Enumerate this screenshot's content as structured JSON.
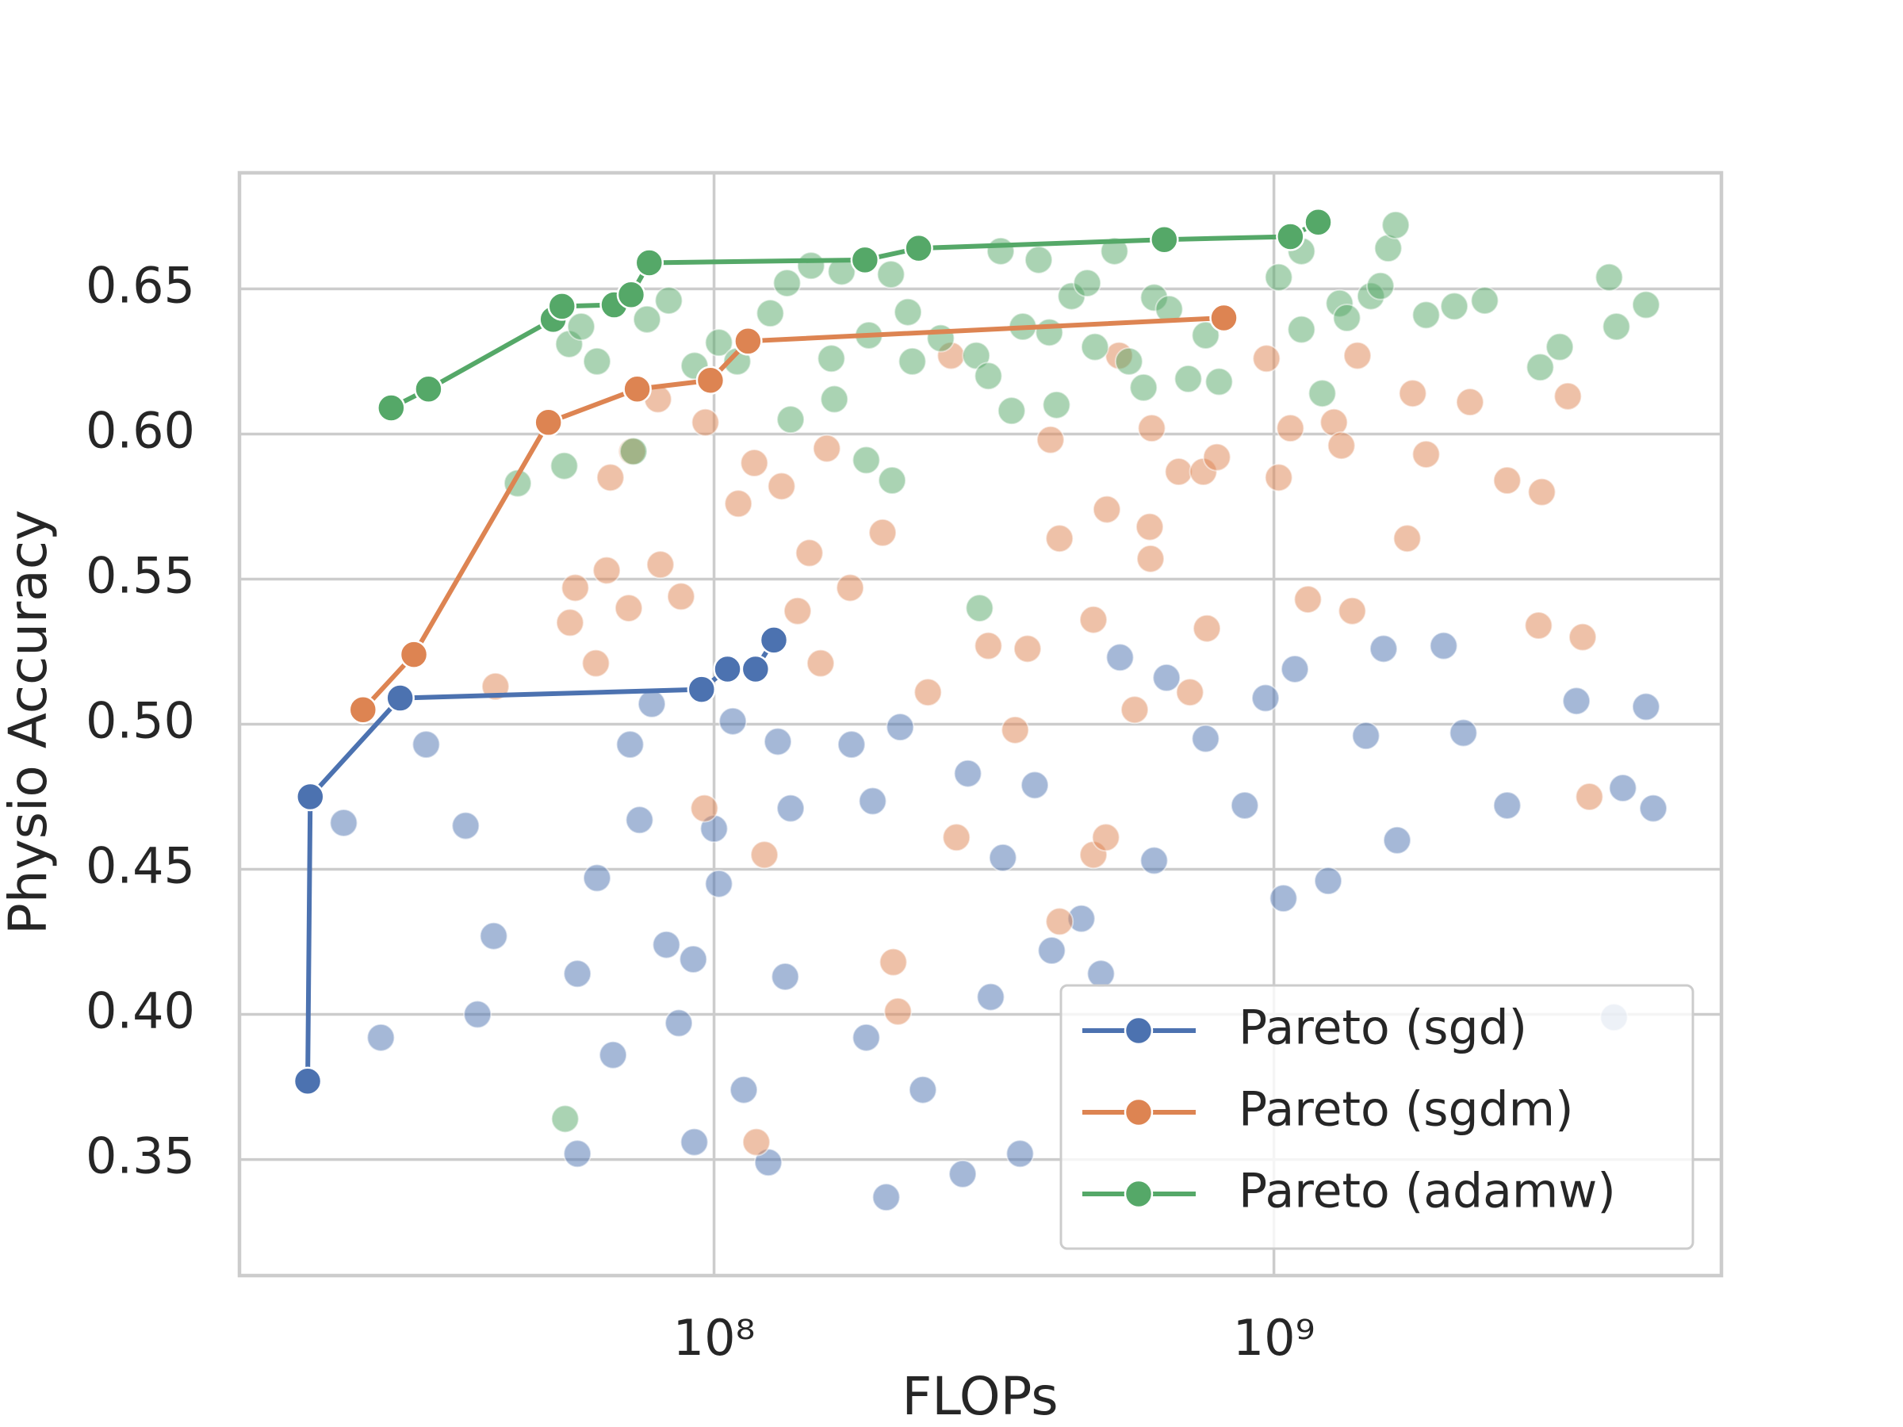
{
  "chart_data": {
    "type": "scatter",
    "xlabel": "FLOPs",
    "ylabel": "Physio Accuracy",
    "xscale": "log",
    "xlim": [
      14200000.0,
      6300000000.0
    ],
    "ylim": [
      0.31,
      0.69
    ],
    "xticks": [
      {
        "value": 100000000.0,
        "label": "10⁸"
      },
      {
        "value": 1000000000.0,
        "label": "10⁹"
      }
    ],
    "yticks": [
      0.35,
      {
        "value": 0.4,
        "label": "0.40"
      },
      0.45,
      {
        "value": 0.5,
        "label": "0.50"
      },
      0.55,
      {
        "value": 0.6,
        "label": "0.60"
      },
      0.65
    ],
    "grid": true,
    "legend": "lower right",
    "points": [
      {
        "color": "#4c72b0",
        "x": [
          21800000.0,
          25400000.0,
          30600000.0,
          36000000.0,
          37800000.0,
          40400000.0,
          57000000.0,
          57000000.0,
          61800000.0,
          66000000.0,
          70800000.0,
          73600000.0,
          77400000.0,
          82200000.0,
          86500000.0,
          91800000.0,
          92200000.0,
          100000000.0,
          102000000.0,
          108000000.0,
          113000000.0,
          125000000.0,
          130000000.0,
          134000000.0,
          137000000.0,
          176000000.0,
          187000000.0,
          192000000.0,
          203000000.0,
          215000000.0,
          236000000.0,
          278000000.0,
          284000000.0,
          312000000.0,
          328000000.0,
          352000000.0,
          374000000.0,
          401000000.0,
          453000000.0,
          491000000.0,
          531000000.0,
          611000000.0,
          643000000.0,
          755000000.0,
          887000000.0,
          966000000.0,
          1040000000.0,
          1090000000.0,
          1250000000.0,
          1460000000.0,
          1570000000.0,
          1660000000.0,
          2010000000.0,
          2180000000.0,
          2610000000.0,
          3470000000.0,
          4050000000.0,
          4200000000.0,
          4620000000.0,
          4760000000.0
        ],
        "y": [
          0.466,
          0.392,
          0.493,
          0.465,
          0.4,
          0.427,
          0.414,
          0.352,
          0.447,
          0.386,
          0.493,
          0.467,
          0.507,
          0.424,
          0.397,
          0.419,
          0.356,
          0.464,
          0.445,
          0.501,
          0.374,
          0.349,
          0.494,
          0.413,
          0.471,
          0.493,
          0.392,
          0.4735,
          0.337,
          0.499,
          0.374,
          0.345,
          0.483,
          0.406,
          0.454,
          0.352,
          0.479,
          0.422,
          0.433,
          0.414,
          0.523,
          0.453,
          0.516,
          0.495,
          0.472,
          0.509,
          0.44,
          0.519,
          0.446,
          0.496,
          0.526,
          0.46,
          0.527,
          0.497,
          0.472,
          0.508,
          0.399,
          0.478,
          0.506,
          0.471
        ]
      },
      {
        "color": "#dd8452",
        "x": [
          40700000.0,
          55300000.0,
          56500000.0,
          64300000.0,
          61500000.0,
          65300000.0,
          70400000.0,
          71400000.0,
          79400000.0,
          80200000.0,
          87300000.0,
          96100000.0,
          96500000.0,
          110500000.0,
          118000000.0,
          119000000.0,
          123000000.0,
          132000000.0,
          141000000.0,
          148000000.0,
          155000000.0,
          159000000.0,
          175000000.0,
          200000000.0,
          209000000.0,
          213000000.0,
          241000000.0,
          265000000.0,
          271000000.0,
          309000000.0,
          345000000.0,
          363000000.0,
          399000000.0,
          414000000.0,
          414000000.0,
          476000000.0,
          476000000.0,
          503000000.0,
          501000000.0,
          529000000.0,
          564000000.0,
          600000000.0,
          602000000.0,
          605000000.0,
          676000000.0,
          708000000.0,
          748000000.0,
          759000000.0,
          791000000.0,
          970000000.0,
          1020000000.0,
          1070000000.0,
          1150000000.0,
          1280000000.0,
          1320000000.0,
          1380000000.0,
          1410000000.0,
          1730000000.0,
          1770000000.0,
          1870000000.0,
          2240000000.0,
          2610000000.0,
          2970000000.0,
          3010000000.0,
          3350000000.0,
          3560000000.0,
          3660000000.0
        ],
        "y": [
          0.513,
          0.535,
          0.547,
          0.553,
          0.521,
          0.585,
          0.54,
          0.594,
          0.612,
          0.555,
          0.544,
          0.471,
          0.604,
          0.576,
          0.59,
          0.356,
          0.455,
          0.582,
          0.539,
          0.559,
          0.521,
          0.595,
          0.547,
          0.566,
          0.418,
          0.401,
          0.511,
          0.627,
          0.461,
          0.527,
          0.498,
          0.526,
          0.598,
          0.564,
          0.432,
          0.536,
          0.455,
          0.574,
          0.461,
          0.627,
          0.505,
          0.568,
          0.557,
          0.602,
          0.587,
          0.511,
          0.587,
          0.533,
          0.592,
          0.626,
          0.585,
          0.602,
          0.543,
          0.604,
          0.596,
          0.539,
          0.627,
          0.564,
          0.614,
          0.593,
          0.611,
          0.584,
          0.534,
          0.58,
          0.613,
          0.53,
          0.475
        ]
      },
      {
        "color": "#55a868",
        "x": [
          44600000.0,
          54000000.0,
          55100000.0,
          57900000.0,
          61800000.0,
          71800000.0,
          75900000.0,
          83000000.0,
          92300000.0,
          102000000.0,
          110000000.0,
          126000000.0,
          135000000.0,
          137000000.0,
          149000000.0,
          162000000.0,
          164000000.0,
          169000000.0,
          187000000.0,
          189000000.0,
          207000000.0,
          208000000.0,
          222000000.0,
          226000000.0,
          254000000.0,
          294000000.0,
          298000000.0,
          309000000.0,
          325000000.0,
          340000000.0,
          356000000.0,
          380000000.0,
          397000000.0,
          409000000.0,
          435000000.0,
          464000000.0,
          479000000.0,
          519000000.0,
          551000000.0,
          585000000.0,
          611000000.0,
          650000000.0,
          703000000.0,
          755000000.0,
          798000000.0,
          1020000000.0,
          1120000000.0,
          1120000000.0,
          1220000000.0,
          1310000000.0,
          1350000000.0,
          1490000000.0,
          1550000000.0,
          1600000000.0,
          1650000000.0,
          1870000000.0,
          2100000000.0,
          2380000000.0,
          2990000000.0,
          3240000000.0,
          3970000000.0,
          4090000000.0,
          4620000000.0,
          54200000.0
        ],
        "y": [
          0.583,
          0.589,
          0.631,
          0.637,
          0.625,
          0.594,
          0.6395,
          0.646,
          0.6235,
          0.6315,
          0.625,
          0.6416,
          0.652,
          0.605,
          0.658,
          0.626,
          0.612,
          0.656,
          0.591,
          0.634,
          0.655,
          0.584,
          0.642,
          0.625,
          0.633,
          0.627,
          0.54,
          0.62,
          0.663,
          0.608,
          0.637,
          0.66,
          0.635,
          0.61,
          0.6475,
          0.652,
          0.63,
          0.663,
          0.625,
          0.616,
          0.647,
          0.643,
          0.619,
          0.634,
          0.618,
          0.654,
          0.663,
          0.636,
          0.614,
          0.645,
          0.64,
          0.6475,
          0.651,
          0.664,
          0.672,
          0.641,
          0.644,
          0.646,
          0.623,
          0.63,
          0.654,
          0.637,
          0.6445,
          0.364
        ]
      }
    ],
    "series": [
      {
        "name": "Pareto (sgd)",
        "color": "#4c72b0",
        "x": [
          18800000.0,
          19000000.0,
          27500000.0,
          95000000.0,
          105700000.0,
          118600000.0,
          127900000.0
        ],
        "y": [
          0.377,
          0.475,
          0.509,
          0.512,
          0.519,
          0.519,
          0.529
        ]
      },
      {
        "name": "Pareto (sgdm)",
        "color": "#dd8452",
        "x": [
          23600000.0,
          29100000.0,
          50600000.0,
          72900000.0,
          98500000.0,
          115000000.0,
          814000000.0
        ],
        "y": [
          0.505,
          0.524,
          0.604,
          0.6155,
          0.6185,
          0.632,
          0.64
        ]
      },
      {
        "name": "Pareto (adamw)",
        "color": "#55a868",
        "x": [
          26500000.0,
          30900000.0,
          51600000.0,
          53500000.0,
          66300000.0,
          71100000.0,
          76600000.0,
          186000000.0,
          232000000.0,
          637000000.0,
          1070000000.0,
          1200000000.0
        ],
        "y": [
          0.609,
          0.6155,
          0.6395,
          0.644,
          0.6445,
          0.648,
          0.659,
          0.66,
          0.664,
          0.667,
          0.668,
          0.673
        ]
      }
    ]
  }
}
